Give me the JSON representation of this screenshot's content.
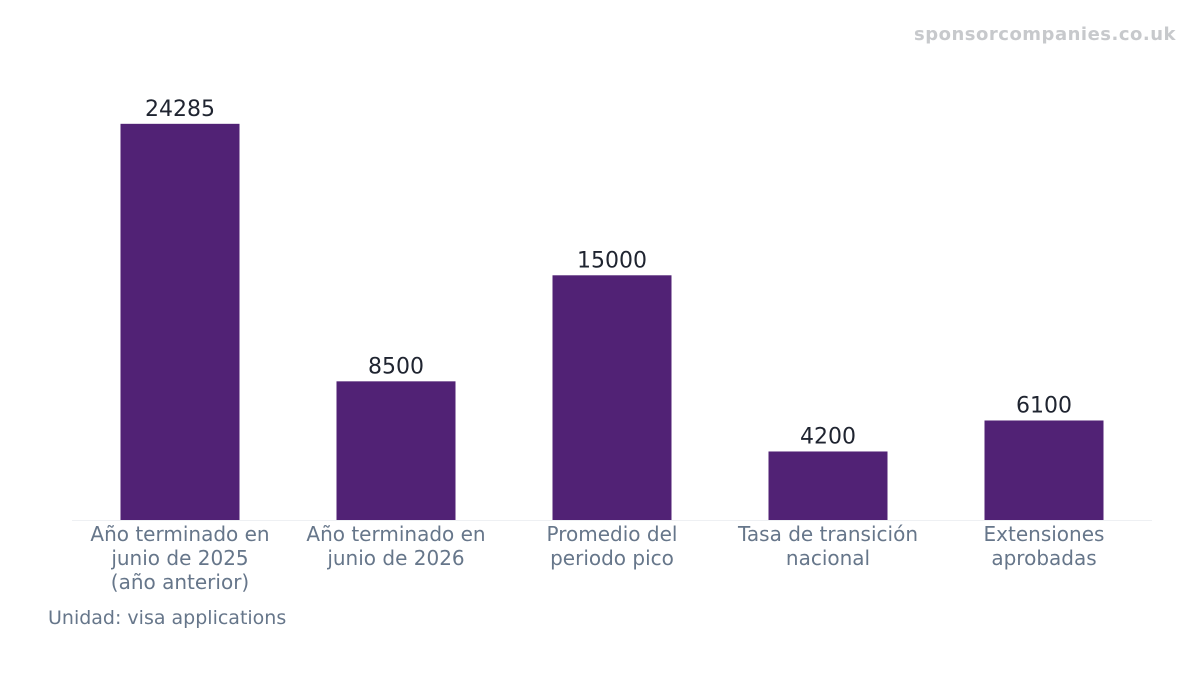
{
  "watermark": "sponsorcompanies.co.uk",
  "unit_note": "Unidad: visa applications",
  "colors": {
    "bar": "#512275",
    "value_label": "#1f2430",
    "category_label": "#66768a",
    "axis": "#eef0f3"
  },
  "chart_data": {
    "type": "bar",
    "title": "",
    "xlabel": "",
    "ylabel": "",
    "categories": [
      [
        "Año terminado en",
        "junio de 2025",
        "(año anterior)"
      ],
      [
        "Año terminado en",
        "junio de 2026"
      ],
      [
        "Promedio del",
        "periodo pico"
      ],
      [
        "Tasa de transición",
        "nacional"
      ],
      [
        "Extensiones",
        "aprobadas"
      ]
    ],
    "values": [
      24285,
      8500,
      15000,
      4200,
      6100
    ],
    "ylim": [
      0,
      25500
    ],
    "grid": false,
    "legend": "none"
  }
}
